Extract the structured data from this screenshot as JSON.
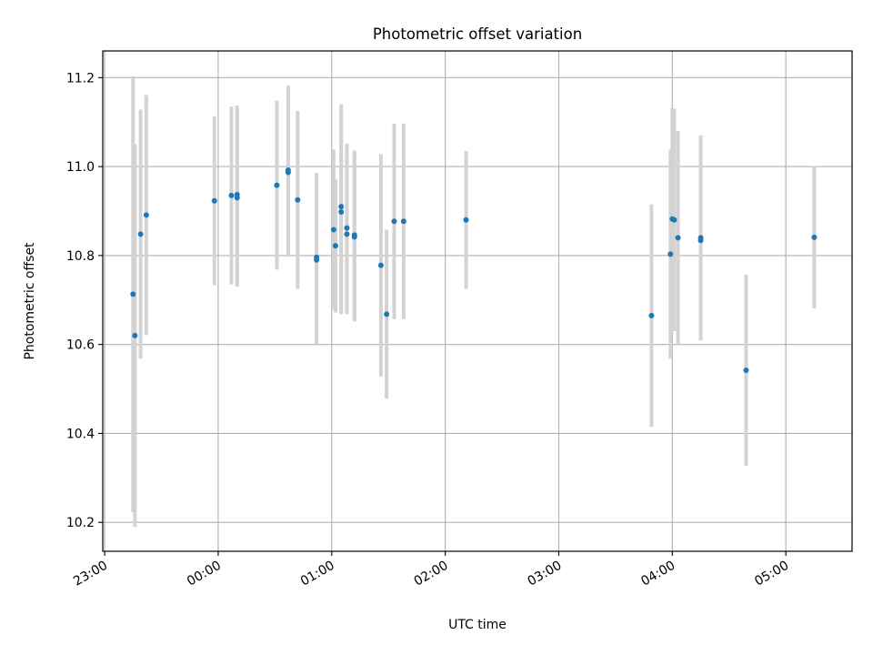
{
  "colors": {
    "point": "#1f77b4",
    "errorbar": "#d3d3d3",
    "grid": "#b0b0b0",
    "axes": "#000000"
  },
  "chart_data": {
    "type": "scatter",
    "title": "Photometric offset variation",
    "xlabel": "UTC time",
    "ylabel": "Photometric offset",
    "grid": true,
    "x_unit": "hours after 23:00 UTC",
    "xlim": [
      "22:59",
      "05:35"
    ],
    "ylim": [
      10.135,
      11.26
    ],
    "x_ticks": [
      "23:00",
      "00:00",
      "01:00",
      "02:00",
      "03:00",
      "04:00",
      "05:00"
    ],
    "y_ticks": [
      "10.2",
      "10.4",
      "10.6",
      "10.8",
      "11.0",
      "11.2"
    ],
    "series": [
      {
        "points": [
          {
            "x": "23:15",
            "y": 10.713,
            "err": 0.49
          },
          {
            "x": "23:16",
            "y": 10.62,
            "err": 0.43
          },
          {
            "x": "23:19",
            "y": 10.848,
            "err": 0.28
          },
          {
            "x": "23:22",
            "y": 10.891,
            "err": 0.27
          },
          {
            "x": "23:58",
            "y": 10.923,
            "err": 0.19
          },
          {
            "x": "00:07",
            "y": 10.935,
            "err": 0.2
          },
          {
            "x": "00:10",
            "y": 10.93,
            "err": 0.2
          },
          {
            "x": "00:10",
            "y": 10.937,
            "err": 0.2
          },
          {
            "x": "00:31",
            "y": 10.958,
            "err": 0.19
          },
          {
            "x": "00:37",
            "y": 10.987,
            "err": 0.19
          },
          {
            "x": "00:37",
            "y": 10.992,
            "err": 0.19
          },
          {
            "x": "00:42",
            "y": 10.925,
            "err": 0.2
          },
          {
            "x": "00:52",
            "y": 10.79,
            "err": 0.19
          },
          {
            "x": "00:52",
            "y": 10.796,
            "err": 0.19
          },
          {
            "x": "01:01",
            "y": 10.858,
            "err": 0.18
          },
          {
            "x": "01:02",
            "y": 10.822,
            "err": 0.15
          },
          {
            "x": "01:05",
            "y": 10.898,
            "err": 0.23
          },
          {
            "x": "01:05",
            "y": 10.91,
            "err": 0.23
          },
          {
            "x": "01:08",
            "y": 10.862,
            "err": 0.19
          },
          {
            "x": "01:08",
            "y": 10.848,
            "err": 0.18
          },
          {
            "x": "01:12",
            "y": 10.842,
            "err": 0.19
          },
          {
            "x": "01:12",
            "y": 10.846,
            "err": 0.19
          },
          {
            "x": "01:26",
            "y": 10.778,
            "err": 0.25
          },
          {
            "x": "01:29",
            "y": 10.668,
            "err": 0.19
          },
          {
            "x": "01:33",
            "y": 10.877,
            "err": 0.22
          },
          {
            "x": "01:38",
            "y": 10.877,
            "err": 0.22
          },
          {
            "x": "02:11",
            "y": 10.88,
            "err": 0.155
          },
          {
            "x": "03:49",
            "y": 10.665,
            "err": 0.25
          },
          {
            "x": "03:59",
            "y": 10.803,
            "err": 0.235
          },
          {
            "x": "04:00",
            "y": 10.882,
            "err": 0.25
          },
          {
            "x": "04:01",
            "y": 10.88,
            "err": 0.25
          },
          {
            "x": "04:03",
            "y": 10.84,
            "err": 0.24
          },
          {
            "x": "04:15",
            "y": 10.834,
            "err": 0.225
          },
          {
            "x": "04:15",
            "y": 10.84,
            "err": 0.23
          },
          {
            "x": "04:39",
            "y": 10.542,
            "err": 0.215
          },
          {
            "x": "05:15",
            "y": 10.841,
            "err": 0.16
          }
        ]
      }
    ]
  }
}
